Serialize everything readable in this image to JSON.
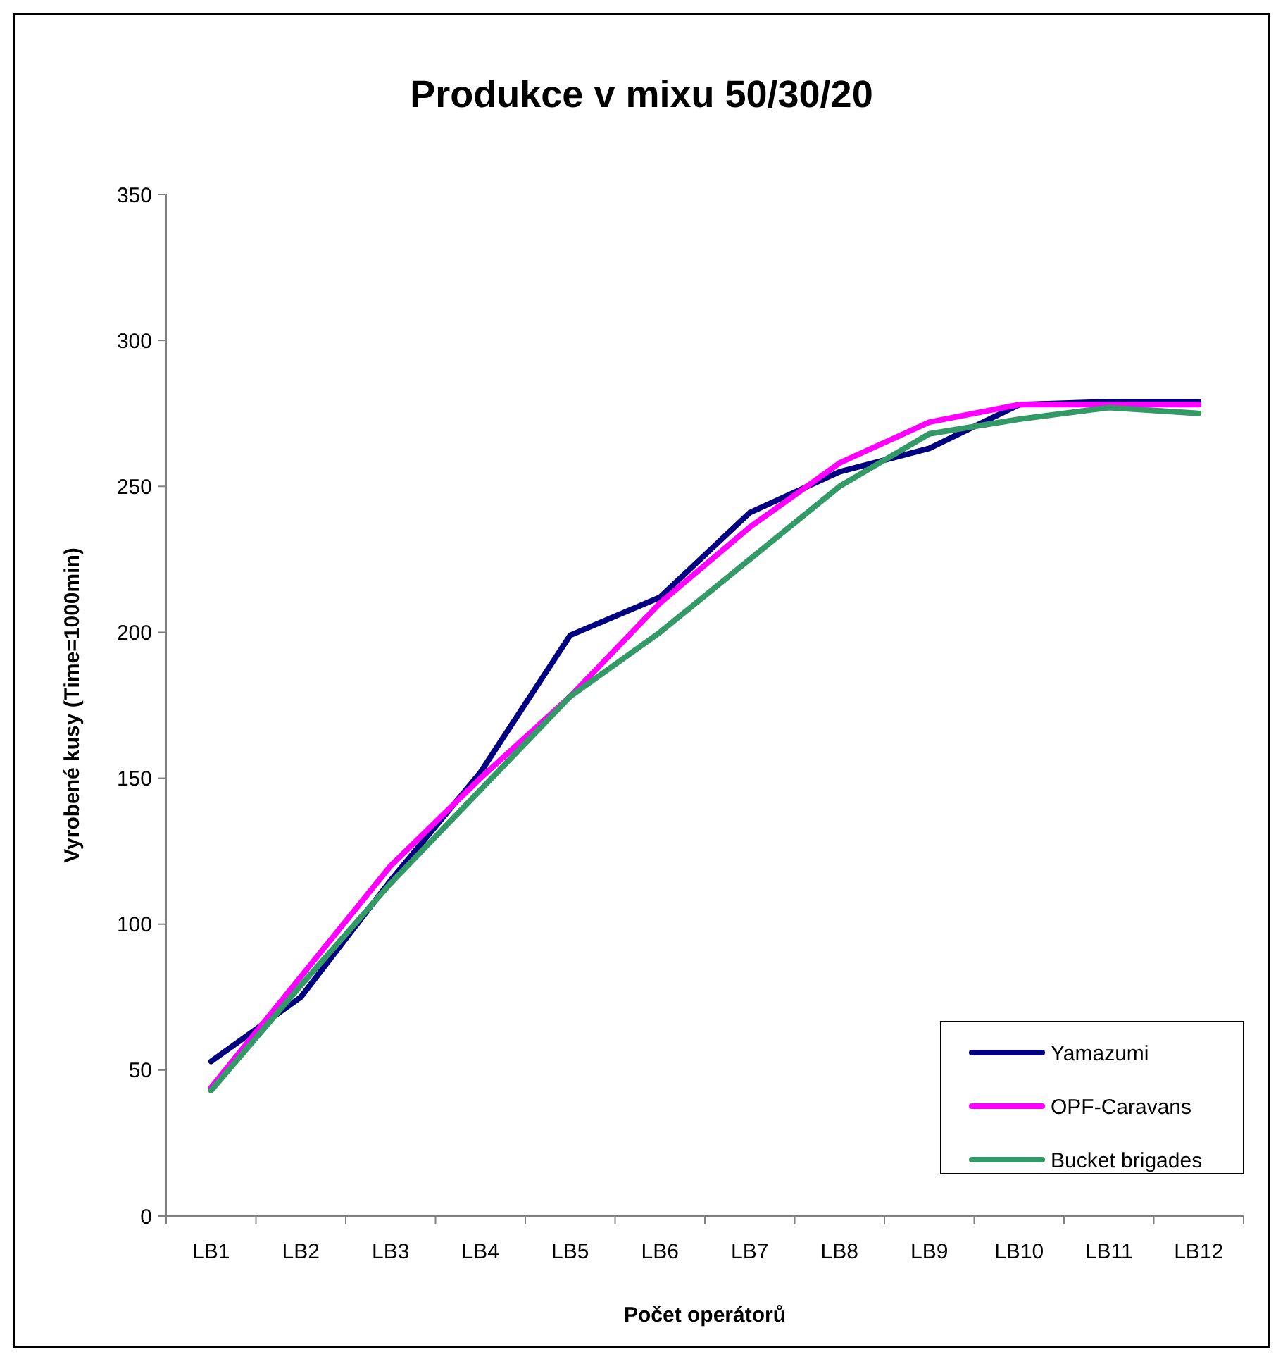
{
  "chart_data": {
    "type": "line",
    "title": "Produkce v mixu 50/30/20",
    "xlabel": "Počet operátorů",
    "ylabel": "Vyrobené kusy (Time=1000min)",
    "categories": [
      "LB1",
      "LB2",
      "LB3",
      "LB4",
      "LB5",
      "LB6",
      "LB7",
      "LB8",
      "LB9",
      "LB10",
      "LB11",
      "LB12"
    ],
    "series": [
      {
        "name": "Yamazumi",
        "color": "#000080",
        "values": [
          53,
          75,
          115,
          152,
          199,
          212,
          241,
          255,
          263,
          278,
          279,
          279
        ]
      },
      {
        "name": "OPF-Caravans",
        "color": "#ff00ff",
        "values": [
          44,
          82,
          120,
          150,
          178,
          210,
          236,
          258,
          272,
          278,
          278,
          278
        ]
      },
      {
        "name": "Bucket brigades",
        "color": "#339966",
        "values": [
          43,
          79,
          114,
          146,
          178,
          200,
          225,
          250,
          268,
          273,
          277,
          275
        ]
      }
    ],
    "ylim": [
      0,
      350
    ],
    "yticks": [
      0,
      50,
      100,
      150,
      200,
      250,
      300,
      350
    ],
    "grid": false,
    "legend": "bottom right",
    "marker": "none",
    "line_style": "solid"
  }
}
